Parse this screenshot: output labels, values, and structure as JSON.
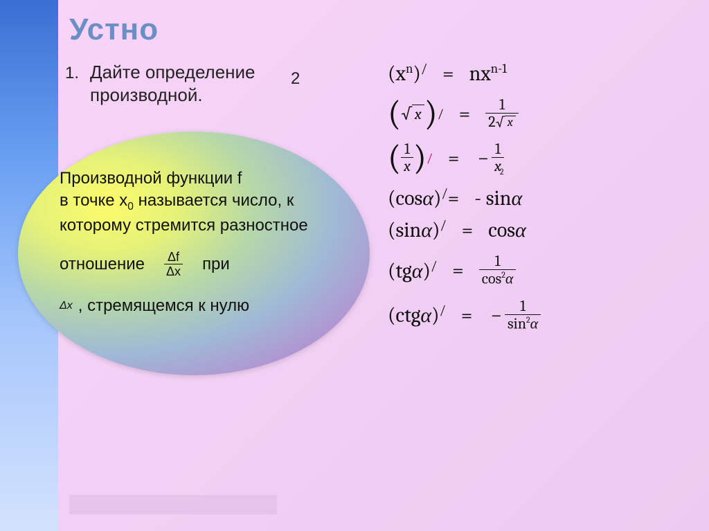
{
  "header": "Устно",
  "task": {
    "num": "1.",
    "text_l1": "Дайте определение",
    "text_l2": "производной.",
    "num2": "2"
  },
  "definition": {
    "l1": "Производной функции f",
    "l2_a": "в точке х",
    "l2_sub": "0",
    "l2_b": "называется число, к",
    "l3": "которому стремится разностное",
    "ratio_word": "отношение",
    "ratio_pri": "при",
    "delta_f": "Δf",
    "delta_x": "Δx",
    "dx_small": "Δx",
    "last": ", стремящемся к нулю"
  },
  "formulas": {
    "power_lhs_open": "(x",
    "power_lhs_exp": "n",
    "power_lhs_close": ")",
    "prime": "/",
    "eq": "=",
    "power_rhs_a": "nx",
    "power_rhs_exp": "n-1",
    "sqrt_x": "x",
    "one": "1",
    "two": "2",
    "inv_x_den": "x",
    "inv_rhs_minus": "−",
    "cos_lhs": "(cos",
    "alpha": "α",
    "close_paren": ")",
    "cos_rhs": "- sin",
    "sin_lhs": "(sin",
    "sin_rhs": "cos",
    "tg_lhs": "(tg",
    "tg_rhs_den_a": "cos",
    "sq": "2",
    "ctg_lhs": "(ctg",
    "ctg_rhs_den_a": "sin"
  },
  "colors": {
    "sidebar_top": "#3a6fd3",
    "header_color": "#6b8fc5",
    "bg1": "#f8d4f8"
  }
}
